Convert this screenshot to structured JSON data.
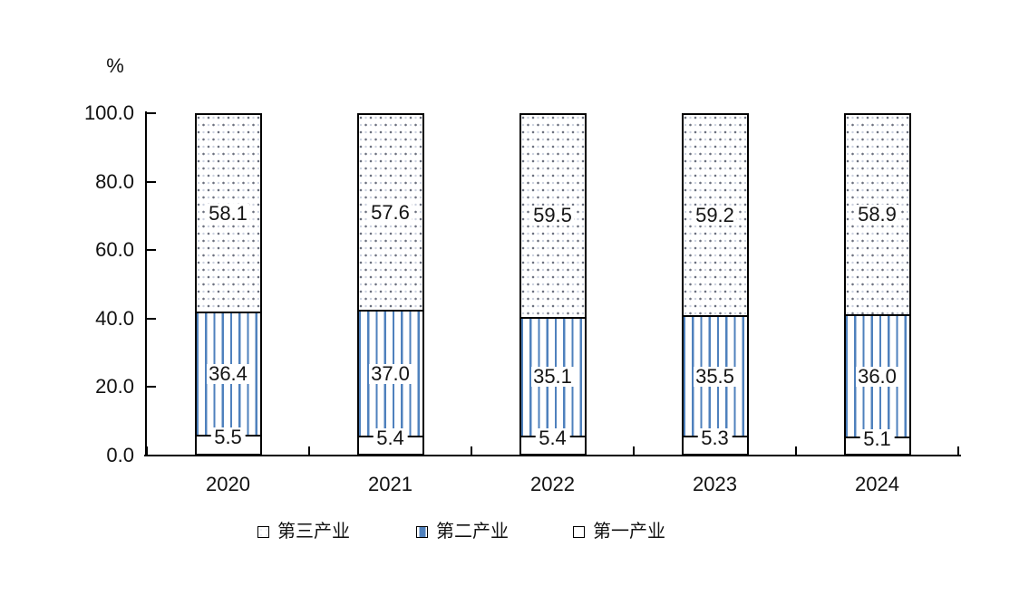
{
  "chart_data": {
    "type": "bar",
    "stacked": true,
    "unit_label": "%",
    "categories": [
      "2020",
      "2021",
      "2022",
      "2023",
      "2024"
    ],
    "series": [
      {
        "name": "第一产业",
        "pattern": "plain",
        "values": [
          5.5,
          5.4,
          5.4,
          5.3,
          5.1
        ],
        "labels": [
          "5.5",
          "5.4",
          "5.4",
          "5.3",
          "5.1"
        ]
      },
      {
        "name": "第二产业",
        "pattern": "stripes",
        "values": [
          36.4,
          37.0,
          35.1,
          35.5,
          36.0
        ],
        "labels": [
          "36.4",
          "37.0",
          "35.1",
          "35.5",
          "36.0"
        ]
      },
      {
        "name": "第三产业",
        "pattern": "dots",
        "values": [
          58.1,
          57.6,
          59.5,
          59.2,
          58.9
        ],
        "labels": [
          "58.1",
          "57.6",
          "59.5",
          "59.2",
          "58.9"
        ]
      }
    ],
    "yticks": [
      "0.0",
      "20.0",
      "40.0",
      "60.0",
      "80.0",
      "100.0"
    ],
    "ylim": [
      0,
      100
    ],
    "grid": false,
    "legend_position": "bottom",
    "legend": [
      {
        "label": "第三产业",
        "pattern": "dots"
      },
      {
        "label": "第二产业",
        "pattern": "stripes"
      },
      {
        "label": "第一产业",
        "pattern": "plain"
      }
    ],
    "colors": {
      "stripe_blue": "#4f81bd",
      "axis_line": "#000000",
      "dot_dark": "#6d7280",
      "dot_light": "#ccd2e0"
    }
  }
}
